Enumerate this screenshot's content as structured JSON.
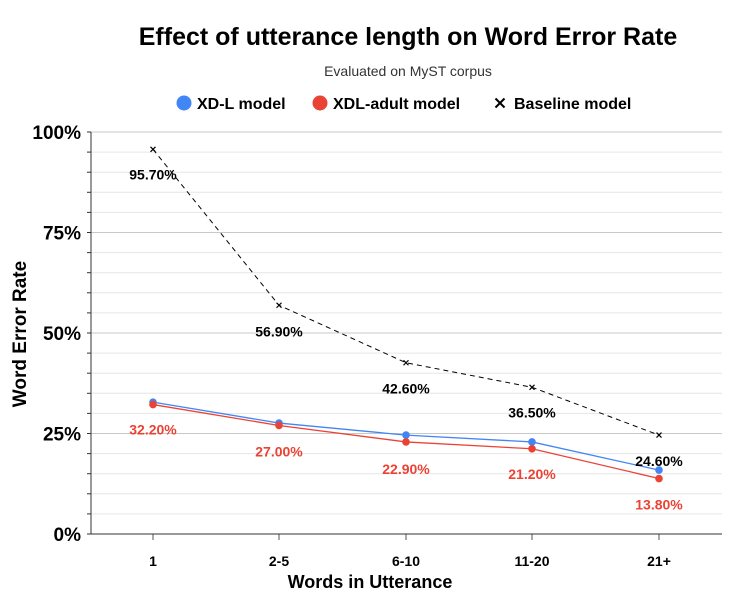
{
  "chart_data": {
    "type": "line",
    "title": "Effect of utterance length on Word Error Rate",
    "subtitle": "Evaluated on MyST corpus",
    "xlabel": "Words in Utterance",
    "ylabel": "Word Error Rate",
    "categories": [
      "1",
      "2-5",
      "6-10",
      "11-20",
      "21+"
    ],
    "ylim": [
      0,
      100
    ],
    "y_ticks": [
      {
        "value": 0,
        "label": "0%"
      },
      {
        "value": 25,
        "label": "25%"
      },
      {
        "value": 50,
        "label": "50%"
      },
      {
        "value": 75,
        "label": "75%"
      },
      {
        "value": 100,
        "label": "100%"
      }
    ],
    "grid": true,
    "legend_position": "top",
    "series": [
      {
        "name": "XD-L model",
        "values": [
          32.8,
          27.6,
          24.6,
          22.9,
          15.9
        ],
        "color": "#4285f4",
        "marker": "circle",
        "line": "solid",
        "labels": []
      },
      {
        "name": "XDL-adult model",
        "values": [
          32.2,
          27.0,
          22.9,
          21.2,
          13.8
        ],
        "color": "#ea4335",
        "marker": "circle",
        "line": "solid",
        "labels": [
          "32.20%",
          "27.00%",
          "22.90%",
          "21.20%",
          "13.80%"
        ]
      },
      {
        "name": "Baseline model",
        "values": [
          95.7,
          56.9,
          42.6,
          36.5,
          24.6
        ],
        "color": "#000000",
        "marker": "x",
        "line": "dashed",
        "labels": [
          "95.70%",
          "56.90%",
          "42.60%",
          "36.50%",
          "24.60%"
        ]
      }
    ]
  }
}
